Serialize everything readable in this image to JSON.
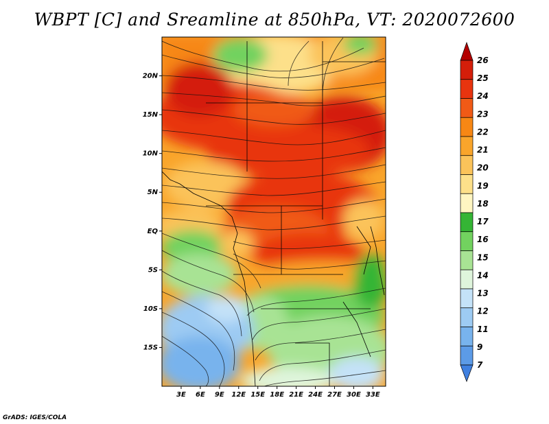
{
  "title": "WBPT [C] and Sreamline at 850hPa, VT: 2020072600",
  "footer": "GrADS: IGES/COLA",
  "map": {
    "lon_range": [
      0,
      35
    ],
    "lat_range": [
      -20,
      25
    ],
    "lon_ticks": [
      "3E",
      "6E",
      "9E",
      "12E",
      "15E",
      "18E",
      "21E",
      "24E",
      "27E",
      "30E",
      "33E"
    ],
    "lat_ticks": [
      "20N",
      "15N",
      "10N",
      "5N",
      "EQ",
      "5S",
      "10S",
      "15S"
    ]
  },
  "colorbar": {
    "labels": [
      "26",
      "25",
      "24",
      "23",
      "22",
      "21",
      "20",
      "19",
      "18",
      "17",
      "16",
      "15",
      "14",
      "13",
      "12",
      "11",
      "9",
      "7"
    ],
    "colors": [
      "#b30000",
      "#d41e0a",
      "#e8340f",
      "#f05a16",
      "#f78714",
      "#f9a52b",
      "#fbc35a",
      "#fde08a",
      "#fff6c2",
      "#35b535",
      "#72d25f",
      "#a8e394",
      "#dff5dc",
      "#c4e2f8",
      "#9dcbf3",
      "#78b3ed",
      "#5c9be7",
      "#3f80e0"
    ]
  }
}
